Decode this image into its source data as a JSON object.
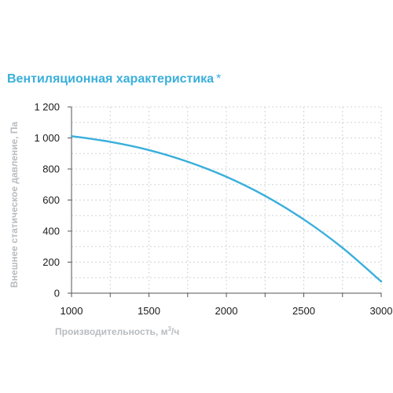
{
  "chart_data": {
    "type": "line",
    "title": "Вентиляционная характеристика",
    "title_mark": "*",
    "xlabel_main": "Производительность, м",
    "xlabel_sup": "3",
    "xlabel_tail": "/ч",
    "ylabel": "Внешнее статическое давление, Па",
    "xlim": [
      1000,
      3000
    ],
    "ylim": [
      0,
      1200
    ],
    "x_ticks": [
      1000,
      1500,
      2000,
      2500,
      3000
    ],
    "x_tick_labels": [
      "1000",
      "1500",
      "2000",
      "2500",
      "3000"
    ],
    "y_ticks": [
      0,
      200,
      400,
      600,
      800,
      1000,
      1200
    ],
    "y_tick_labels": [
      "0",
      "200",
      "400",
      "600",
      "800",
      "1 000",
      "1 200"
    ],
    "grid": true,
    "series": [
      {
        "color": "#3aafdb",
        "x": [
          1000,
          1250,
          1500,
          1750,
          2000,
          2250,
          2500,
          2750,
          3000
        ],
        "y": [
          1012,
          975,
          922,
          847,
          750,
          627,
          475,
          292,
          75
        ]
      }
    ]
  },
  "colors": {
    "accent": "#3aafdb",
    "grid": "#cfd3d6",
    "axis_title": "#b8bcc0",
    "tick_text": "#1a1a1a"
  }
}
